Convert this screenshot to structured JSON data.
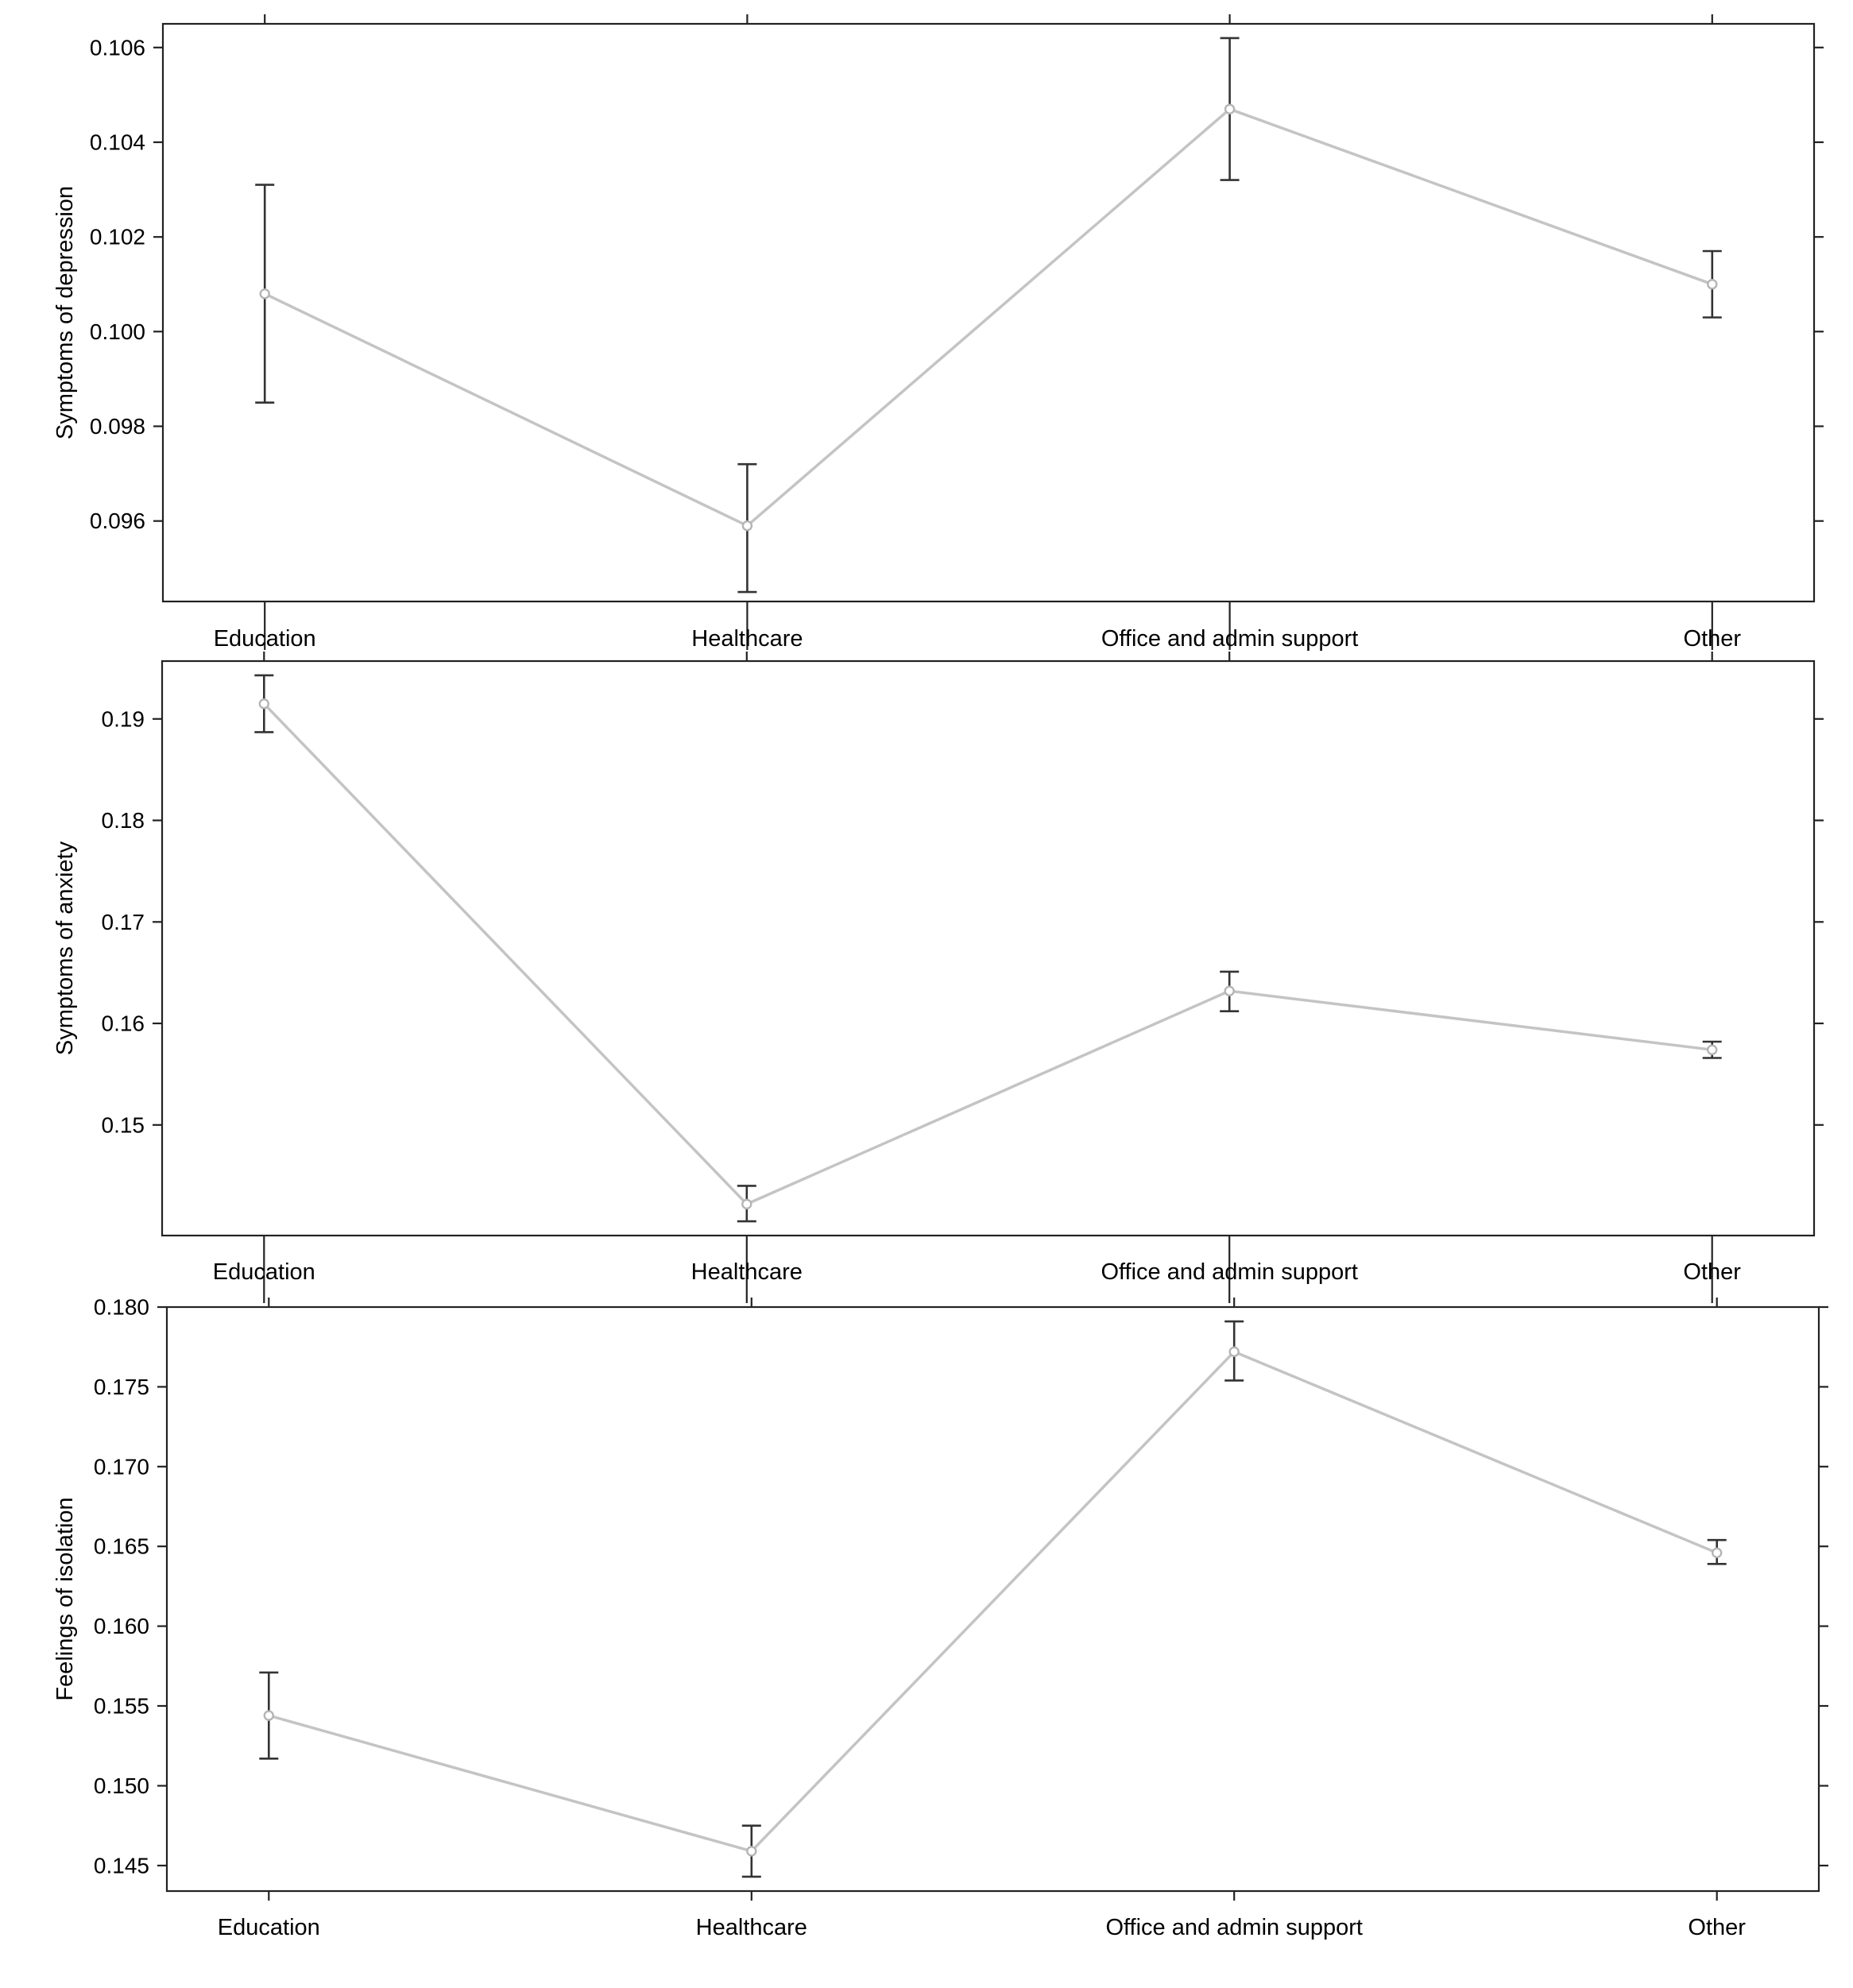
{
  "chart_data": [
    {
      "type": "line",
      "ylabel": "Symptoms of depression",
      "categories": [
        "Education",
        "Healthcare",
        "Office and admin support",
        "Other"
      ],
      "values": [
        0.1008,
        0.0959,
        0.1047,
        0.101
      ],
      "lower": [
        0.0985,
        0.0945,
        0.1032,
        0.1003
      ],
      "upper": [
        0.1031,
        0.0972,
        0.1062,
        0.1017
      ],
      "yticks": [
        0.096,
        0.098,
        0.1,
        0.102,
        0.104,
        0.106
      ],
      "ytick_labels": [
        "0.096",
        "0.098",
        "0.100",
        "0.102",
        "0.104",
        "0.106"
      ],
      "ylim": [
        0.0943,
        0.1065
      ]
    },
    {
      "type": "line",
      "ylabel": "Symptoms of anxiety",
      "categories": [
        "Education",
        "Healthcare",
        "Office and admin support",
        "Other"
      ],
      "values": [
        0.1915,
        0.1422,
        0.1632,
        0.1574
      ],
      "lower": [
        0.1887,
        0.1405,
        0.1612,
        0.1566
      ],
      "upper": [
        0.1943,
        0.144,
        0.1651,
        0.1582
      ],
      "yticks": [
        0.15,
        0.16,
        0.17,
        0.18,
        0.19
      ],
      "ytick_labels": [
        "0.15",
        "0.16",
        "0.17",
        "0.18",
        "0.19"
      ],
      "ylim": [
        0.1391,
        0.1957
      ]
    },
    {
      "type": "line",
      "ylabel": "Feelings of isolation",
      "categories": [
        "Education",
        "Healthcare",
        "Office and admin support",
        "Other"
      ],
      "values": [
        0.1544,
        0.1459,
        0.1772,
        0.1646
      ],
      "lower": [
        0.1517,
        0.1443,
        0.1754,
        0.1639
      ],
      "upper": [
        0.1571,
        0.1475,
        0.1791,
        0.1654
      ],
      "yticks": [
        0.145,
        0.15,
        0.155,
        0.16,
        0.165,
        0.17,
        0.175,
        0.18
      ],
      "ytick_labels": [
        "0.145",
        "0.150",
        "0.155",
        "0.160",
        "0.165",
        "0.170",
        "0.175",
        "0.180"
      ],
      "ylim": [
        0.1434,
        0.18
      ]
    }
  ]
}
